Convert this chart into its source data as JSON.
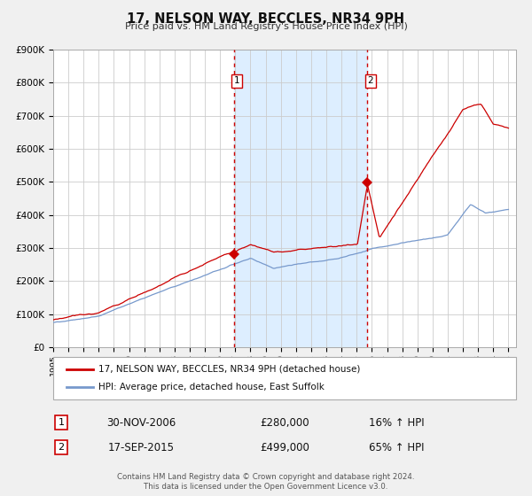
{
  "title": "17, NELSON WAY, BECCLES, NR34 9PH",
  "subtitle": "Price paid vs. HM Land Registry's House Price Index (HPI)",
  "bg_color": "#f0f0f0",
  "plot_bg_color": "#ffffff",
  "grid_color": "#cccccc",
  "red_line_color": "#cc0000",
  "blue_line_color": "#7799cc",
  "shade_color": "#ddeeff",
  "sale1_date_label": "30-NOV-2006",
  "sale1_price": 280000,
  "sale1_year": 2006.917,
  "sale1_pct": "16%",
  "sale2_date_label": "17-SEP-2015",
  "sale2_price": 499000,
  "sale2_year": 2015.708,
  "sale2_pct": "65%",
  "legend_line1": "17, NELSON WAY, BECCLES, NR34 9PH (detached house)",
  "legend_line2": "HPI: Average price, detached house, East Suffolk",
  "footnote1": "Contains HM Land Registry data © Crown copyright and database right 2024.",
  "footnote2": "This data is licensed under the Open Government Licence v3.0.",
  "ylim_max": 900000,
  "ylim_min": 0,
  "xlim_min": 1995.0,
  "xlim_max": 2025.5
}
